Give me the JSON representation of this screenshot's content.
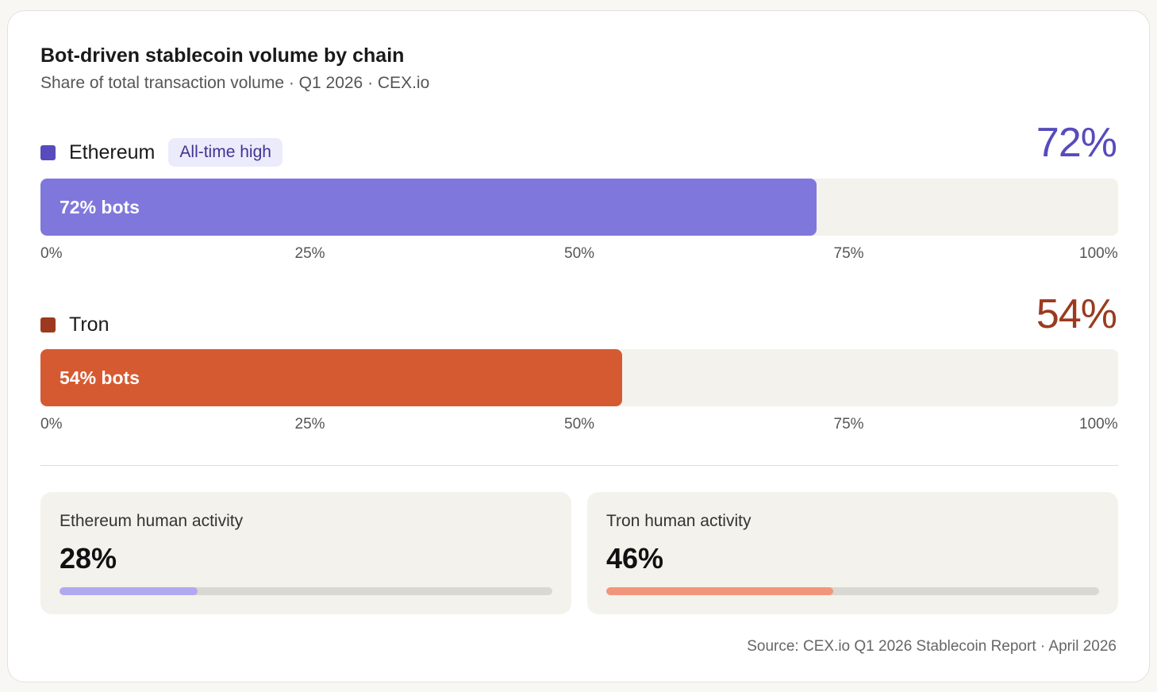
{
  "title": "Bot-driven stablecoin volume by chain",
  "subtitle": "Share of total transaction volume · Q1 2026 · CEX.io",
  "colors": {
    "ethereum_swatch": "#574bbd",
    "ethereum_fill": "#8077dc",
    "ethereum_value": "#574bbd",
    "ethereum_mini": "#b1a9ef",
    "tron_swatch": "#9b3a1f",
    "tron_fill": "#d65a31",
    "tron_value": "#9b3a1f",
    "tron_mini": "#f1967a"
  },
  "chart_data": {
    "type": "bar",
    "orientation": "horizontal",
    "xlim": [
      0,
      100
    ],
    "ticks": [
      "0%",
      "25%",
      "50%",
      "75%",
      "100%"
    ],
    "series": [
      {
        "name": "Ethereum",
        "value": 72,
        "big_label": "72%",
        "bar_label": "72% bots",
        "badge": "All-time high"
      },
      {
        "name": "Tron",
        "value": 54,
        "big_label": "54%",
        "bar_label": "54% bots",
        "badge": ""
      }
    ]
  },
  "stats": [
    {
      "label": "Ethereum human activity",
      "value_text": "28%",
      "value": 28
    },
    {
      "label": "Tron human activity",
      "value_text": "46%",
      "value": 46
    }
  ],
  "source": "Source: CEX.io Q1 2026 Stablecoin Report · April 2026"
}
